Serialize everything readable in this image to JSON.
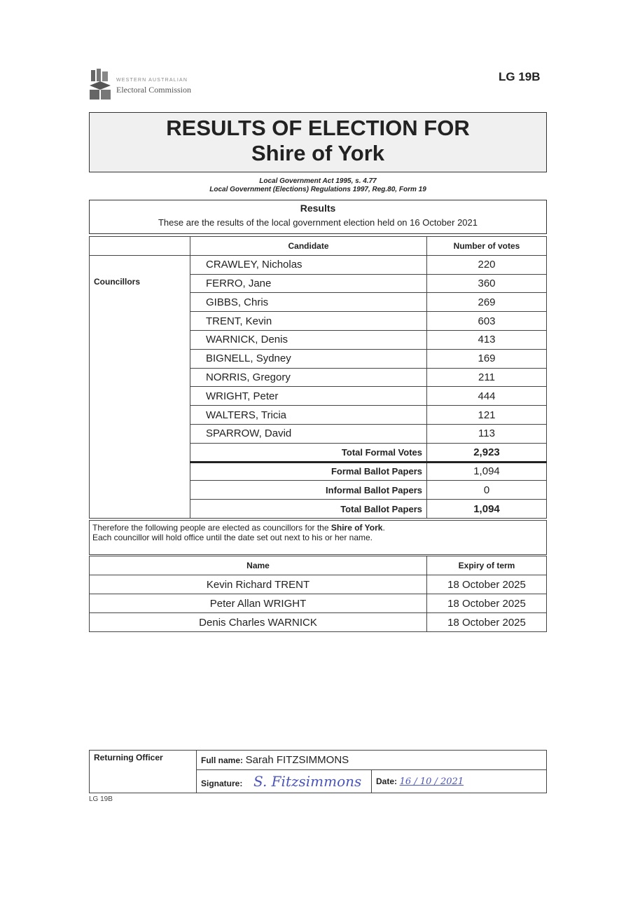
{
  "header": {
    "logo_line1": "WESTERN AUSTRALIAN",
    "logo_line2": "Electoral Commission",
    "form_code": "LG 19B"
  },
  "title": {
    "line1": "RESULTS OF ELECTION FOR",
    "line2": "Shire of York"
  },
  "legislation": {
    "line1": "Local Government Act 1995, s. 4.77",
    "line2": "Local Government (Elections) Regulations 1997, Reg.80, Form 19"
  },
  "results": {
    "heading": "Results",
    "subtitle": "These are the results of the local government election held on 16 October 2021"
  },
  "table": {
    "col_candidate": "Candidate",
    "col_votes": "Number of votes",
    "category": "Councillors",
    "rows": [
      {
        "name": "CRAWLEY, Nicholas",
        "votes": "220"
      },
      {
        "name": "FERRO, Jane",
        "votes": "360"
      },
      {
        "name": "GIBBS, Chris",
        "votes": "269"
      },
      {
        "name": "TRENT, Kevin",
        "votes": "603"
      },
      {
        "name": "WARNICK, Denis",
        "votes": "413"
      },
      {
        "name": "BIGNELL, Sydney",
        "votes": "169"
      },
      {
        "name": "NORRIS, Gregory",
        "votes": "211"
      },
      {
        "name": "WRIGHT, Peter",
        "votes": "444"
      },
      {
        "name": "WALTERS, Tricia",
        "votes": "121"
      },
      {
        "name": "SPARROW, David",
        "votes": "113"
      }
    ],
    "total_formal_votes_label": "Total Formal Votes",
    "total_formal_votes": "2,923",
    "formal_ballot_label": "Formal Ballot Papers",
    "formal_ballot": "1,094",
    "informal_ballot_label": "Informal Ballot Papers",
    "informal_ballot": "0",
    "total_ballot_label": "Total Ballot Papers",
    "total_ballot": "1,094"
  },
  "elected": {
    "text_pre": "Therefore the following people are elected as councillors for the ",
    "text_bold": "Shire of York",
    "text_post": ".",
    "text_line2": "Each councillor will hold office until the date set out next to his or her name.",
    "col_name": "Name",
    "col_expiry": "Expiry of term",
    "rows": [
      {
        "name": "Kevin Richard TRENT",
        "expiry": "18 October 2025"
      },
      {
        "name": "Peter Allan WRIGHT",
        "expiry": "18 October 2025"
      },
      {
        "name": "Denis Charles WARNICK",
        "expiry": "18 October 2025"
      }
    ]
  },
  "officer": {
    "label": "Returning Officer",
    "full_name_label": "Full name:",
    "full_name": "Sarah FITZSIMMONS",
    "signature_label": "Signature:",
    "signature": "S. Fitzsimmons",
    "date_label": "Date:",
    "date": "16 / 10 / 2021"
  },
  "footer": {
    "code": "LG 19B"
  }
}
